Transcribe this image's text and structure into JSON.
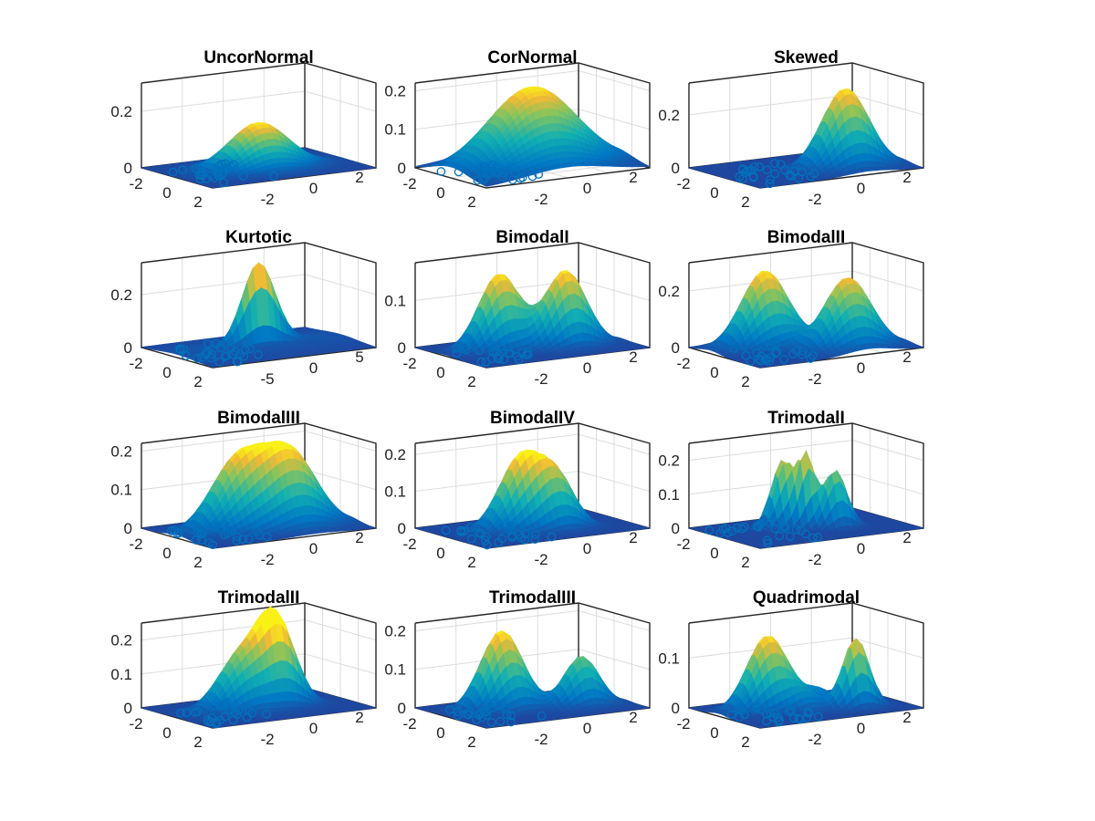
{
  "chart_data": [
    {
      "type": "surface",
      "title": "UncorNormal",
      "zticks": [
        "0",
        "0.2"
      ],
      "zmax": 0.3,
      "xticks": [
        "-2",
        "0",
        "2"
      ],
      "yticks": [
        "-2",
        "0",
        "2"
      ],
      "peaks": [
        {
          "x": 0,
          "y": 0,
          "sx": 1,
          "sy": 1,
          "h": 0.16
        }
      ],
      "peak_density": 0.16
    },
    {
      "type": "surface",
      "title": "CorNormal",
      "zticks": [
        "0",
        "0.1",
        "0.2"
      ],
      "zmax": 0.22,
      "xticks": [
        "-2",
        "0",
        "2"
      ],
      "yticks": [
        "-2",
        "0",
        "2"
      ],
      "peaks": [
        {
          "x": 0,
          "y": 0,
          "sx": 1.5,
          "sy": 1.5,
          "h": 0.21
        }
      ],
      "peak_density": 0.21
    },
    {
      "type": "surface",
      "title": "Skewed",
      "zticks": [
        "0",
        "0.2"
      ],
      "zmax": 0.32,
      "xticks": [
        "-2",
        "0",
        "2"
      ],
      "yticks": [
        "-2",
        "0",
        "2"
      ],
      "peaks": [
        {
          "x": 1.0,
          "y": 1.0,
          "sx": 0.8,
          "sy": 0.8,
          "h": 0.3
        }
      ],
      "peak_density": 0.3
    },
    {
      "type": "surface",
      "title": "Kurtotic",
      "zticks": [
        "0",
        "0.2"
      ],
      "zmax": 0.32,
      "xticks": [
        "-2",
        "0",
        "2"
      ],
      "yticks": [
        "-5",
        "0",
        "5"
      ],
      "peaks": [
        {
          "x": 0,
          "y": 0,
          "sx": 0.25,
          "sy": 0.6,
          "h": 0.3
        },
        {
          "x": 0,
          "y": 0,
          "sx": 1.5,
          "sy": 3,
          "h": 0.02
        }
      ],
      "peak_density": 0.3
    },
    {
      "type": "surface",
      "title": "BimodalI",
      "zticks": [
        "0",
        "0.1"
      ],
      "zmax": 0.18,
      "xticks": [
        "-2",
        "0",
        "2"
      ],
      "yticks": [
        "-2",
        "0",
        "2"
      ],
      "peaks": [
        {
          "x": -0.5,
          "y": -1.0,
          "sx": 0.7,
          "sy": 0.7,
          "h": 0.16
        },
        {
          "x": 0.5,
          "y": 1.0,
          "sx": 0.7,
          "sy": 0.7,
          "h": 0.16
        }
      ],
      "peak_density": 0.16
    },
    {
      "type": "surface",
      "title": "BimodalII",
      "zticks": [
        "0",
        "0.2"
      ],
      "zmax": 0.3,
      "xticks": [
        "-2",
        "0",
        "2"
      ],
      "yticks": [
        "-2",
        "0",
        "2"
      ],
      "peaks": [
        {
          "x": -1.2,
          "y": -1.0,
          "sx": 0.8,
          "sy": 0.8,
          "h": 0.27
        },
        {
          "x": 1.2,
          "y": 1.0,
          "sx": 0.8,
          "sy": 0.8,
          "h": 0.25
        }
      ],
      "peak_density": 0.27
    },
    {
      "type": "surface",
      "title": "BimodalIII",
      "zticks": [
        "0",
        "0.1",
        "0.2"
      ],
      "zmax": 0.22,
      "xticks": [
        "-2",
        "0",
        "2"
      ],
      "yticks": [
        "-2",
        "0",
        "2"
      ],
      "peaks": [
        {
          "x": 0,
          "y": -0.8,
          "sx": 0.9,
          "sy": 0.9,
          "h": 0.18
        },
        {
          "x": 0.6,
          "y": 0.9,
          "sx": 0.9,
          "sy": 0.9,
          "h": 0.19
        }
      ],
      "peak_density": 0.21
    },
    {
      "type": "surface",
      "title": "BimodalIV",
      "zticks": [
        "0",
        "0.1",
        "0.2"
      ],
      "zmax": 0.23,
      "xticks": [
        "-2",
        "0",
        "2"
      ],
      "yticks": [
        "-2",
        "0",
        "2"
      ],
      "peaks": [
        {
          "x": 0,
          "y": -0.4,
          "sx": 0.75,
          "sy": 0.75,
          "h": 0.2
        },
        {
          "x": 0.8,
          "y": 0.6,
          "sx": 0.6,
          "sy": 0.6,
          "h": 0.12
        }
      ],
      "peak_density": 0.2
    },
    {
      "type": "surface",
      "title": "TrimodalI",
      "zticks": [
        "0",
        "0.1",
        "0.2"
      ],
      "zmax": 0.25,
      "xticks": [
        "-2",
        "0",
        "2"
      ],
      "yticks": [
        "-2",
        "0",
        "2"
      ],
      "peaks": [
        {
          "x": -0.6,
          "y": -0.6,
          "sx": 0.4,
          "sy": 0.4,
          "h": 0.2
        },
        {
          "x": 0,
          "y": 0,
          "sx": 0.3,
          "sy": 0.3,
          "h": 0.2
        },
        {
          "x": 0.6,
          "y": 0.8,
          "sx": 0.4,
          "sy": 0.4,
          "h": 0.17
        }
      ],
      "peak_density": 0.24
    },
    {
      "type": "surface",
      "title": "TrimodalII",
      "zticks": [
        "0",
        "0.1",
        "0.2"
      ],
      "zmax": 0.25,
      "xticks": [
        "-2",
        "0",
        "2"
      ],
      "yticks": [
        "-2",
        "0",
        "2"
      ],
      "peaks": [
        {
          "x": 0,
          "y": -0.6,
          "sx": 0.8,
          "sy": 0.8,
          "h": 0.17
        },
        {
          "x": 0.2,
          "y": 0.7,
          "sx": 0.6,
          "sy": 0.6,
          "h": 0.2
        },
        {
          "x": -0.5,
          "y": 0.4,
          "sx": 0.5,
          "sy": 0.5,
          "h": 0.08
        }
      ],
      "peak_density": 0.23
    },
    {
      "type": "surface",
      "title": "TrimodalIII",
      "zticks": [
        "0",
        "0.1",
        "0.2"
      ],
      "zmax": 0.22,
      "xticks": [
        "-2",
        "0",
        "2"
      ],
      "yticks": [
        "-2",
        "0",
        "2"
      ],
      "peaks": [
        {
          "x": -0.6,
          "y": -0.9,
          "sx": 0.7,
          "sy": 0.7,
          "h": 0.2
        },
        {
          "x": 0.9,
          "y": 1.4,
          "sx": 0.6,
          "sy": 0.6,
          "h": 0.13
        },
        {
          "x": 0.4,
          "y": -0.6,
          "sx": 0.5,
          "sy": 0.5,
          "h": 0.03
        }
      ],
      "peak_density": 0.2
    },
    {
      "type": "surface",
      "title": "Quadrimodal",
      "zticks": [
        "0",
        "0.1"
      ],
      "zmax": 0.17,
      "xticks": [
        "-2",
        "0",
        "2"
      ],
      "yticks": [
        "-2",
        "0",
        "2"
      ],
      "peaks": [
        {
          "x": -0.5,
          "y": -1.2,
          "sx": 0.7,
          "sy": 0.7,
          "h": 0.15
        },
        {
          "x": 1.2,
          "y": 1.3,
          "sx": 0.45,
          "sy": 0.45,
          "h": 0.14
        },
        {
          "x": 0.8,
          "y": -0.3,
          "sx": 0.5,
          "sy": 0.5,
          "h": 0.03
        },
        {
          "x": -0.4,
          "y": 0.6,
          "sx": 0.5,
          "sy": 0.5,
          "h": 0.03
        }
      ],
      "peak_density": 0.15
    }
  ]
}
